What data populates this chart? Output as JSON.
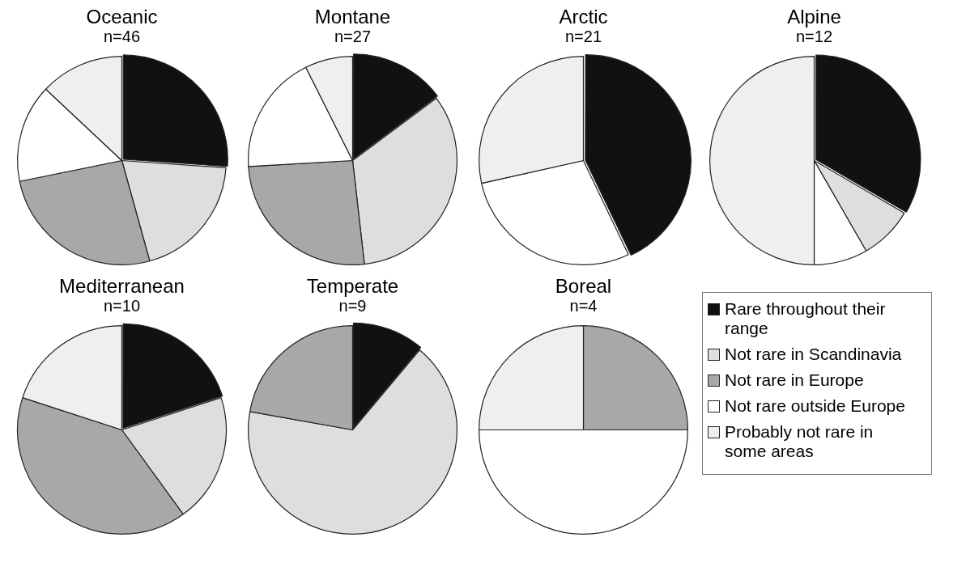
{
  "chart_data": [
    {
      "type": "pie",
      "title": "Oceanic",
      "subtitle": "n=46",
      "categories": [
        null,
        null,
        null,
        null,
        null
      ],
      "values": [
        26.1,
        19.6,
        26.1,
        15.2,
        13.0
      ],
      "colors": [
        "#111111",
        "#dedede",
        "#a8a8a8",
        "#ffffff",
        "#efefef"
      ]
    },
    {
      "type": "pie",
      "title": "Montane",
      "subtitle": "n=27",
      "categories": [
        null,
        null,
        null,
        null,
        null
      ],
      "values": [
        14.8,
        33.4,
        25.9,
        18.5,
        7.4
      ],
      "colors": [
        "#111111",
        "#dedede",
        "#a8a8a8",
        "#ffffff",
        "#efefef"
      ]
    },
    {
      "type": "pie",
      "title": "Arctic",
      "subtitle": "n=21",
      "categories": [
        null,
        null,
        null,
        null,
        null
      ],
      "values": [
        42.9,
        0,
        0,
        28.6,
        28.5
      ],
      "colors": [
        "#111111",
        "#dedede",
        "#a8a8a8",
        "#ffffff",
        "#efefef"
      ]
    },
    {
      "type": "pie",
      "title": "Alpine",
      "subtitle": "n=12",
      "categories": [
        null,
        null,
        null,
        null,
        null
      ],
      "values": [
        33.4,
        8.3,
        0,
        8.3,
        50.0
      ],
      "colors": [
        "#111111",
        "#dedede",
        "#a8a8a8",
        "#ffffff",
        "#efefef"
      ]
    },
    {
      "type": "pie",
      "title": "Mediterranean",
      "subtitle": "n=10",
      "categories": [
        null,
        null,
        null,
        null,
        null
      ],
      "values": [
        20,
        20,
        40,
        0,
        20
      ],
      "colors": [
        "#111111",
        "#dedede",
        "#a8a8a8",
        "#ffffff",
        "#efefef"
      ]
    },
    {
      "type": "pie",
      "title": "Temperate",
      "subtitle": "n=9",
      "categories": [
        null,
        null,
        null,
        null,
        null
      ],
      "values": [
        11.1,
        66.7,
        22.2,
        0,
        0
      ],
      "colors": [
        "#111111",
        "#dedede",
        "#a8a8a8",
        "#ffffff",
        "#efefef"
      ]
    },
    {
      "type": "pie",
      "title": "Boreal",
      "subtitle": "n=4",
      "categories": [
        "Rare throughout their range",
        "Not rare in Scandinavia",
        "Not rare in Europe",
        "Not rare outside Europe",
        "Probably not rare in some areas"
      ],
      "values": [
        0,
        0,
        25,
        50,
        25
      ],
      "colors": [
        "#111111",
        "#dedede",
        "#a8a8a8",
        "#ffffff",
        "#efefef"
      ],
      "legend": "right"
    }
  ]
}
